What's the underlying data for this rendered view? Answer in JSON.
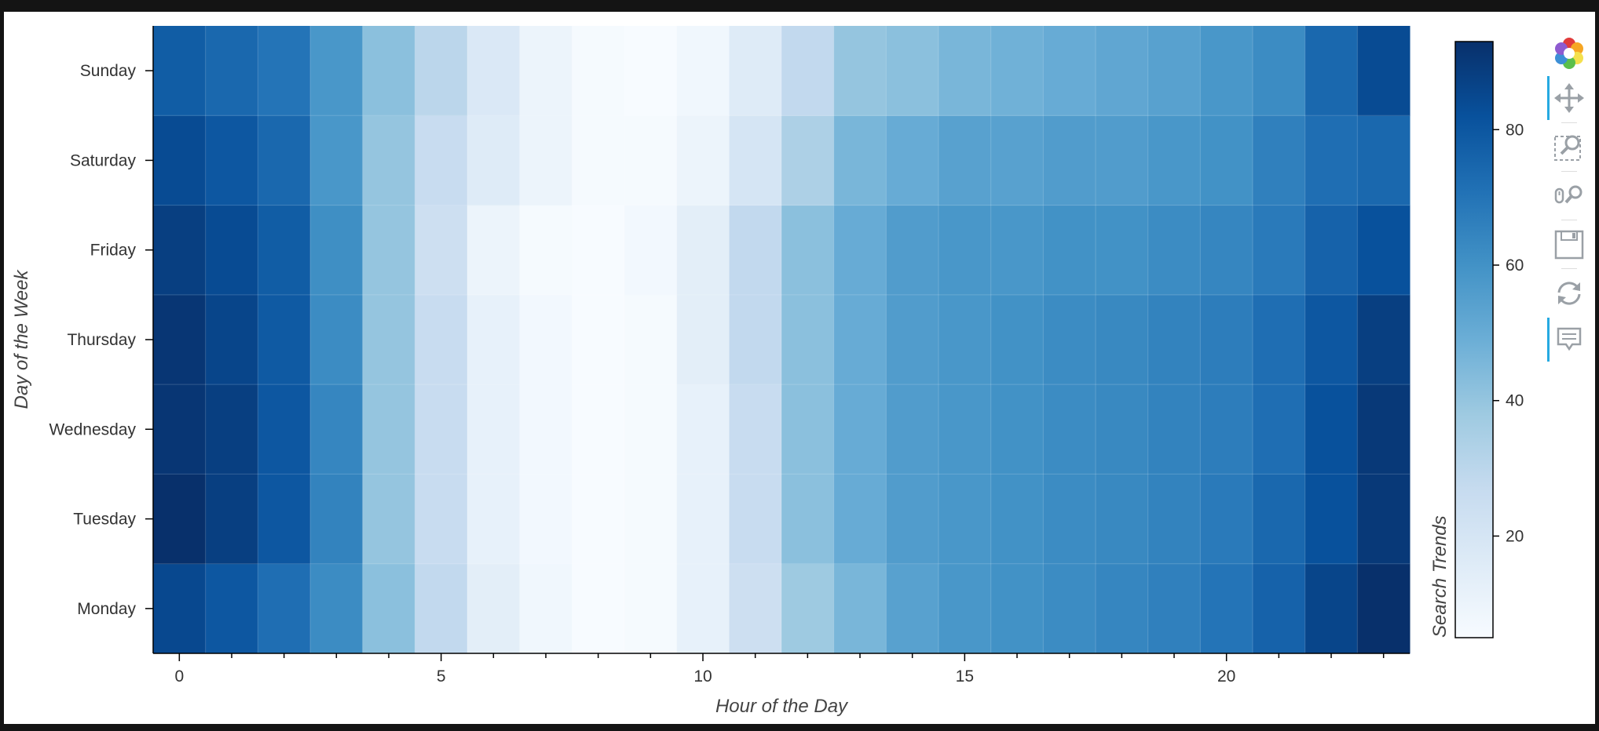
{
  "chart_data": {
    "type": "heatmap",
    "title": "",
    "xlabel": "Hour of the Day",
    "ylabel": "Day of the Week",
    "colorbar_label": "Search Trends",
    "x": [
      0,
      1,
      2,
      3,
      4,
      5,
      6,
      7,
      8,
      9,
      10,
      11,
      12,
      13,
      14,
      15,
      16,
      17,
      18,
      19,
      20,
      21,
      22,
      23
    ],
    "y": [
      "Monday",
      "Tuesday",
      "Wednesday",
      "Thursday",
      "Friday",
      "Saturday",
      "Sunday"
    ],
    "x_ticks": [
      0,
      5,
      10,
      15,
      20
    ],
    "colorbar_ticks": [
      20,
      40,
      60,
      80
    ],
    "colorbar_range": [
      5,
      93
    ],
    "colormap": [
      "#f7fbff",
      "#deebf7",
      "#c6dbef",
      "#9ecae1",
      "#6baed6",
      "#4292c6",
      "#2171b5",
      "#08519c",
      "#08306b"
    ],
    "values": {
      "Monday": [
        85,
        80,
        72,
        62,
        42,
        28,
        14,
        8,
        5,
        6,
        12,
        24,
        38,
        46,
        54,
        58,
        60,
        62,
        64,
        66,
        70,
        76,
        86,
        93
      ],
      "Tuesday": [
        93,
        88,
        80,
        65,
        40,
        26,
        12,
        7,
        5,
        6,
        12,
        26,
        42,
        50,
        56,
        58,
        60,
        62,
        63,
        65,
        68,
        74,
        82,
        90
      ],
      "Wednesday": [
        91,
        88,
        80,
        64,
        40,
        26,
        12,
        7,
        5,
        6,
        12,
        26,
        42,
        50,
        56,
        58,
        60,
        62,
        63,
        65,
        67,
        72,
        82,
        90
      ],
      "Thursday": [
        91,
        86,
        79,
        62,
        40,
        26,
        12,
        7,
        5,
        6,
        14,
        28,
        42,
        50,
        56,
        58,
        60,
        62,
        63,
        65,
        67,
        72,
        80,
        88
      ],
      "Friday": [
        88,
        84,
        78,
        61,
        40,
        24,
        10,
        6,
        5,
        7,
        14,
        28,
        42,
        50,
        56,
        58,
        58,
        60,
        60,
        62,
        64,
        68,
        76,
        82
      ],
      "Saturday": [
        84,
        80,
        74,
        58,
        40,
        26,
        16,
        10,
        6,
        6,
        10,
        20,
        34,
        46,
        50,
        54,
        54,
        56,
        56,
        58,
        60,
        66,
        72,
        74
      ],
      "Sunday": [
        78,
        74,
        70,
        58,
        42,
        30,
        18,
        10,
        6,
        5,
        8,
        16,
        28,
        40,
        42,
        46,
        48,
        50,
        52,
        54,
        58,
        62,
        74,
        84
      ]
    }
  },
  "toolbar": {
    "tools": [
      {
        "name": "bokeh-logo-icon",
        "active": false
      },
      {
        "name": "pan-icon",
        "active": true
      },
      {
        "name": "box-zoom-icon",
        "active": false
      },
      {
        "name": "wheel-zoom-icon",
        "active": false
      },
      {
        "name": "save-icon",
        "active": false
      },
      {
        "name": "reset-icon",
        "active": false
      },
      {
        "name": "hover-icon",
        "active": true
      }
    ]
  }
}
